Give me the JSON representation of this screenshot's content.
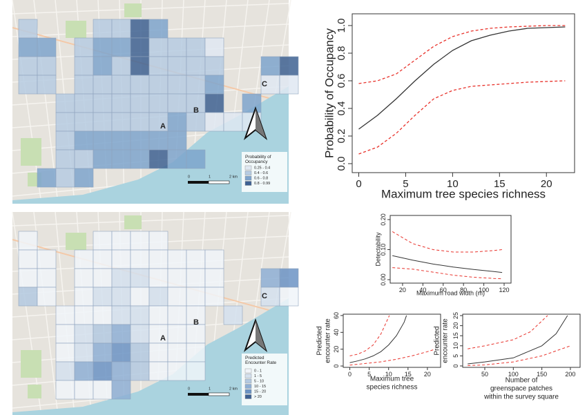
{
  "chart_data": [
    {
      "type": "line",
      "xlabel": "Maximum tree species richness",
      "ylabel": "Probability of Occupancy",
      "xlim": [
        -0.7,
        23
      ],
      "ylim": [
        -0.065,
        1.085
      ],
      "xticks": [
        0,
        5,
        10,
        15,
        20
      ],
      "yticks": [
        {
          "value": 0,
          "label": "0.0"
        },
        0.2,
        0.4,
        0.6,
        0.8,
        {
          "value": 1,
          "label": "1.0"
        }
      ],
      "series": [
        {
          "color": "#333333",
          "style": "solid",
          "x": [
            0,
            2,
            4,
            6,
            8,
            10,
            12,
            14,
            16,
            18,
            20,
            22
          ],
          "values": [
            0.25,
            0.35,
            0.47,
            0.6,
            0.72,
            0.82,
            0.89,
            0.93,
            0.96,
            0.98,
            0.985,
            0.99
          ]
        },
        {
          "color": "#e8312a",
          "style": "dashed",
          "x": [
            0,
            2,
            4,
            6,
            8,
            10,
            12,
            14,
            16,
            18,
            20,
            22
          ],
          "values": [
            0.58,
            0.6,
            0.65,
            0.75,
            0.85,
            0.92,
            0.96,
            0.98,
            0.99,
            0.995,
            1.0,
            1.0
          ]
        },
        {
          "color": "#e8312a",
          "style": "dashed",
          "x": [
            0,
            2,
            4,
            6,
            8,
            10,
            12,
            14,
            16,
            18,
            20,
            22
          ],
          "values": [
            0.07,
            0.12,
            0.22,
            0.35,
            0.47,
            0.53,
            0.56,
            0.57,
            0.58,
            0.59,
            0.595,
            0.6
          ]
        }
      ]
    },
    {
      "type": "line",
      "xlabel": "Maximum road width (m)",
      "ylabel": "Detectability",
      "xlim": [
        7.8,
        126.8
      ],
      "ylim": [
        -0.0115,
        0.2138
      ],
      "xticks": [
        20,
        40,
        60,
        80,
        100,
        120
      ],
      "yticks": [
        {
          "value": 0,
          "label": "0.00"
        },
        {
          "value": 0.1,
          "label": "0.10"
        },
        {
          "value": 0.2,
          "label": "0.20"
        }
      ],
      "series": [
        {
          "color": "#333333",
          "style": "solid",
          "x": [
            10,
            30,
            50,
            70,
            90,
            110,
            118
          ],
          "values": [
            0.08,
            0.065,
            0.052,
            0.042,
            0.034,
            0.027,
            0.024
          ]
        },
        {
          "color": "#e8312a",
          "style": "dashed",
          "x": [
            10,
            30,
            50,
            70,
            90,
            110,
            118
          ],
          "values": [
            0.16,
            0.12,
            0.1,
            0.092,
            0.092,
            0.097,
            0.1
          ]
        },
        {
          "color": "#e8312a",
          "style": "dashed",
          "x": [
            10,
            30,
            50,
            70,
            90,
            110,
            118
          ],
          "values": [
            0.04,
            0.035,
            0.025,
            0.015,
            0.008,
            0.004,
            0.003
          ]
        }
      ]
    },
    {
      "type": "line",
      "xlabel": [
        "Maximum tree",
        "species richness"
      ],
      "ylabel": [
        "Predicted",
        "encounter rate"
      ],
      "xlim": [
        -1.7,
        23.4
      ],
      "ylim": [
        -1.6,
        61.6
      ],
      "xticks": [
        0,
        5,
        10,
        15,
        20
      ],
      "yticks": [
        0,
        20,
        40,
        60
      ],
      "series": [
        {
          "color": "#333333",
          "style": "solid",
          "x": [
            0,
            2,
            4,
            6,
            8,
            10,
            12,
            14,
            14.6
          ],
          "values": [
            4,
            6,
            8.5,
            12,
            17,
            25,
            36,
            52,
            60
          ]
        },
        {
          "color": "#e8312a",
          "style": "dashed",
          "x": [
            0,
            2,
            4,
            6,
            8,
            9,
            10.2
          ],
          "values": [
            12,
            14,
            18,
            25,
            38,
            48,
            60
          ]
        },
        {
          "color": "#e8312a",
          "style": "dashed",
          "x": [
            0,
            4,
            8,
            12,
            16,
            20,
            22
          ],
          "values": [
            1,
            3,
            5,
            8,
            12,
            17,
            20
          ]
        }
      ]
    },
    {
      "type": "line",
      "xlabel": [
        "Number of",
        "greenspace patches",
        "within the survey square"
      ],
      "ylabel": [
        "Predicted",
        "encounter rate"
      ],
      "xlim": [
        11.3,
        217
      ],
      "ylim": [
        -0.7,
        25.7
      ],
      "xticks": [
        50,
        100,
        150,
        200
      ],
      "yticks": [
        0,
        5,
        10,
        15,
        20,
        25
      ],
      "series": [
        {
          "color": "#333333",
          "style": "solid",
          "x": [
            20,
            50,
            100,
            150,
            175,
            195
          ],
          "values": [
            1,
            2,
            4,
            10,
            16,
            25
          ]
        },
        {
          "color": "#e8312a",
          "style": "dashed",
          "x": [
            20,
            50,
            100,
            130,
            160
          ],
          "values": [
            8.5,
            10,
            13,
            17,
            25
          ]
        },
        {
          "color": "#e8312a",
          "style": "dashed",
          "x": [
            20,
            50,
            100,
            150,
            200
          ],
          "values": [
            0.2,
            0.5,
            2,
            5,
            10
          ]
        }
      ]
    }
  ],
  "maps": [
    {
      "legend_title": "Probability of Occupancy",
      "legend_items": [
        "0.25 - 0.4",
        "0.4 - 0.6",
        "0.6 - 0.8",
        "0.8 - 0.99"
      ],
      "colors": [
        "#dfe8f2",
        "#b6cbe2",
        "#7ea4cd",
        "#3e6192"
      ],
      "scale_labels": [
        "0",
        "1",
        "2 km"
      ],
      "labels": [
        "A",
        "B",
        "C"
      ]
    },
    {
      "legend_title": "Predicted Encounter Rate",
      "legend_items": [
        "0 - 1",
        "1 - 5",
        "5 - 10",
        "10 - 15",
        "15 - 20",
        "> 20"
      ],
      "colors": [
        "#f0f4f9",
        "#d3e0ee",
        "#b3c9e1",
        "#8eafd5",
        "#6b93c4",
        "#3e6192"
      ],
      "scale_labels": [
        "0",
        "1",
        "2 km"
      ],
      "labels": [
        "A",
        "B",
        "C"
      ]
    }
  ]
}
